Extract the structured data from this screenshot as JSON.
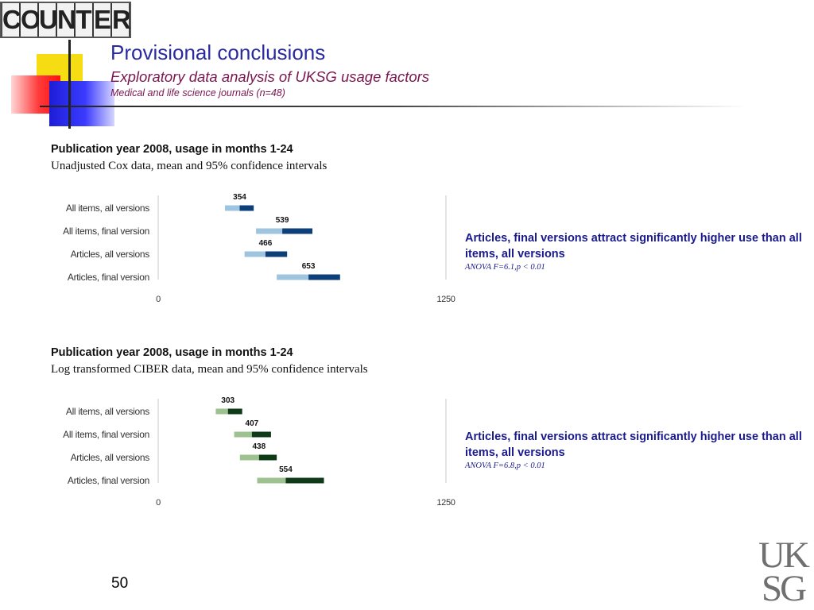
{
  "logo": {
    "letters": [
      "C",
      "O",
      "U",
      "N",
      "T",
      "E",
      "R"
    ]
  },
  "header": {
    "title": "Provisional conclusions",
    "subtitle": "Exploratory data analysis of UKSG usage factors",
    "subsubtitle": "Medical and life science journals (n=48)"
  },
  "colors": {
    "title": "#2a2aa0",
    "subtitle": "#7a1550",
    "conclusion": "#1a1a8c",
    "chart1_light": "#9fc4e0",
    "chart1_dark": "#0d3f78",
    "chart2_light": "#9dc290",
    "chart2_dark": "#0e3a18"
  },
  "chart_data": [
    {
      "type": "bar",
      "heading": "Publication year 2008, usage in months 1-24",
      "description": "Unadjusted Cox data, mean and 95% confidence intervals",
      "categories": [
        "All items, all versions",
        "All items, final version",
        "Articles, all versions",
        "Articles, final version"
      ],
      "means": [
        354,
        539,
        466,
        653
      ],
      "ci_lower": [
        290,
        425,
        375,
        515
      ],
      "ci_upper": [
        415,
        670,
        560,
        790
      ],
      "xlim": [
        0,
        1250
      ],
      "ticks": [
        "0",
        "1250"
      ],
      "grid": false
    },
    {
      "type": "bar",
      "heading": "Publication year 2008, usage in months 1-24",
      "description": "Log transformed CIBER data, mean and 95% confidence intervals",
      "categories": [
        "All items, all versions",
        "All items, final version",
        "Articles, all versions",
        "Articles, final version"
      ],
      "means": [
        303,
        407,
        438,
        554
      ],
      "ci_lower": [
        250,
        330,
        355,
        430
      ],
      "ci_upper": [
        365,
        490,
        515,
        720
      ],
      "xlim": [
        0,
        1250
      ],
      "ticks": [
        "0",
        "1250"
      ],
      "grid": false
    }
  ],
  "conclusions": [
    {
      "text": "Articles, final versions attract significantly higher use than all items, all versions",
      "stat": "ANOVA F=6.1,p < 0.01"
    },
    {
      "text": "Articles, final versions attract significantly higher use than all items, all versions",
      "stat": "ANOVA F=6.8,p < 0.01"
    }
  ],
  "footer": {
    "slide_number": "50",
    "uksg_logo": [
      "UK",
      "SG"
    ]
  }
}
